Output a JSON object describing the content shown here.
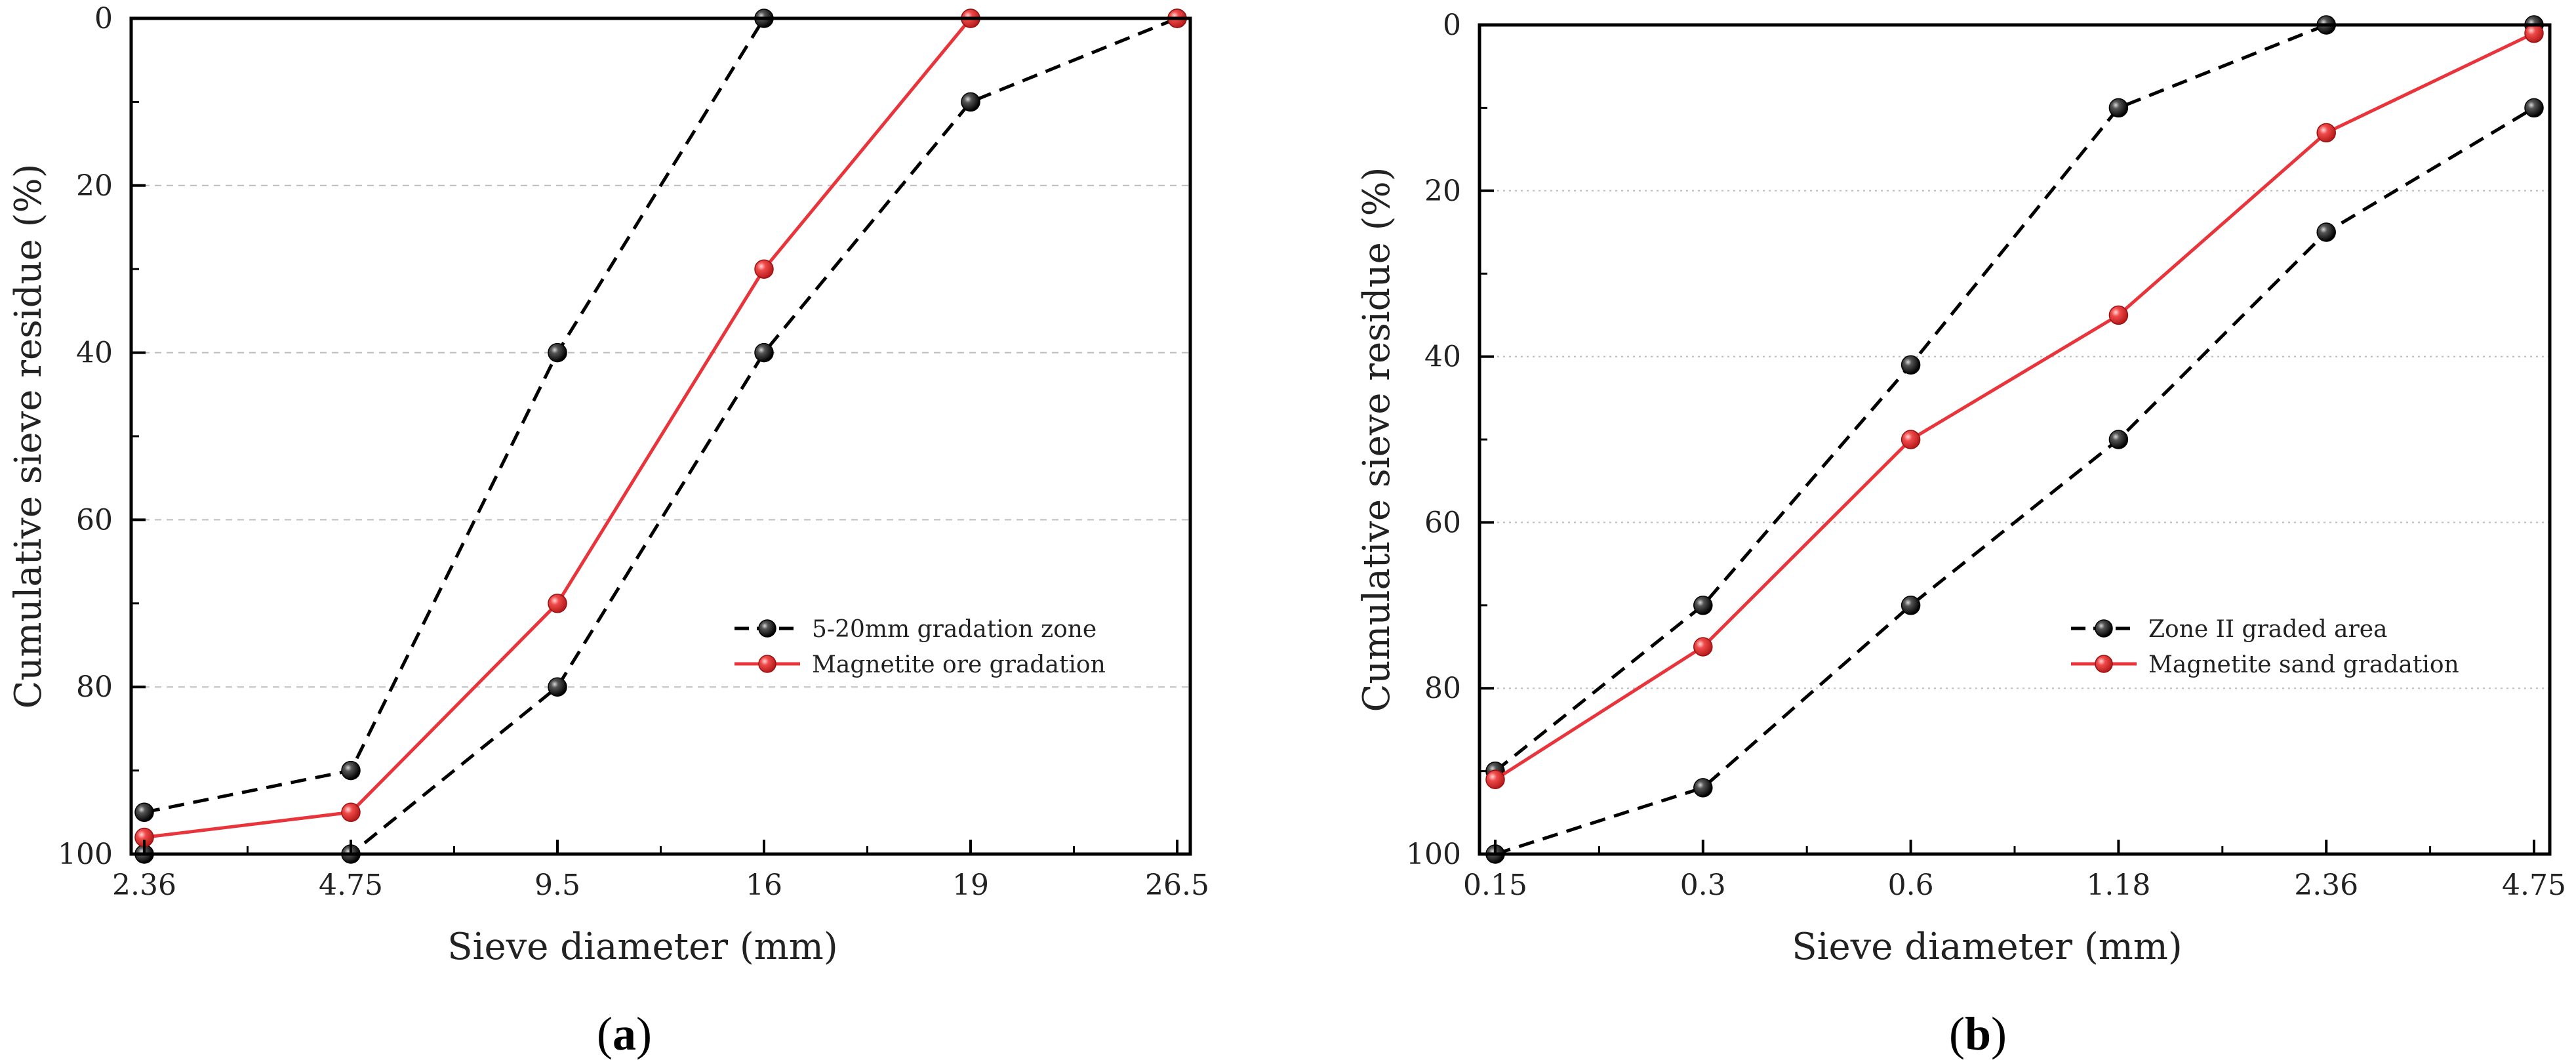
{
  "chart_data": [
    {
      "type": "line",
      "panel": "a",
      "caption_letter": "a",
      "xlabel": "Sieve diameter (mm)",
      "ylabel": "Cumulative sieve residue (%)",
      "categories": [
        "2.36",
        "4.75",
        "9.5",
        "16",
        "19",
        "26.5"
      ],
      "ylim": [
        100,
        0
      ],
      "yticks": [
        "0",
        "20",
        "40",
        "60",
        "80",
        "100"
      ],
      "grid": "horizontal dashed",
      "legend_position": "center-right",
      "series": [
        {
          "name": "5-20mm gradation zone",
          "role": "upper-limit",
          "color": "#000000",
          "style": "dashed",
          "values": [
            95,
            90,
            40,
            0,
            0,
            0
          ]
        },
        {
          "name": "",
          "role": "lower-limit",
          "color": "#000000",
          "style": "dashed",
          "values": [
            100,
            100,
            80,
            40,
            10,
            0
          ]
        },
        {
          "name": "Magnetite ore gradation",
          "role": "measured",
          "color": "#e8343a",
          "style": "solid",
          "values": [
            98,
            95,
            70,
            30,
            0,
            0
          ]
        }
      ]
    },
    {
      "type": "line",
      "panel": "b",
      "caption_letter": "b",
      "xlabel": "Sieve diameter (mm)",
      "ylabel": "Cumulative sieve residue (%)",
      "categories": [
        "0.15",
        "0.3",
        "0.6",
        "1.18",
        "2.36",
        "4.75"
      ],
      "ylim": [
        100,
        0
      ],
      "yticks": [
        "0",
        "20",
        "40",
        "60",
        "80",
        "100"
      ],
      "grid": "horizontal dotted",
      "legend_position": "lower-right",
      "series": [
        {
          "name": "Zone II graded area",
          "role": "upper-limit",
          "color": "#000000",
          "style": "dashed",
          "values": [
            90,
            70,
            41,
            10,
            0,
            0
          ]
        },
        {
          "name": "",
          "role": "lower-limit",
          "color": "#000000",
          "style": "dashed",
          "values": [
            100,
            92,
            70,
            50,
            25,
            10
          ]
        },
        {
          "name": "Magnetite sand gradation",
          "role": "measured",
          "color": "#e8343a",
          "style": "solid",
          "values": [
            91,
            75,
            50,
            35,
            13,
            1
          ]
        }
      ]
    }
  ]
}
